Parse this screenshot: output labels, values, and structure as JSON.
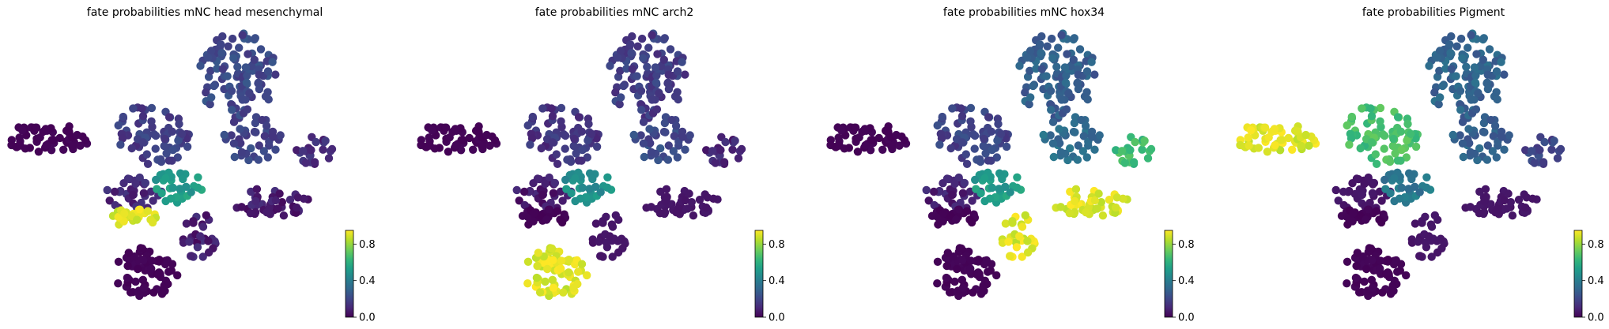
{
  "colormap": [
    "#440154",
    "#482878",
    "#3e4989",
    "#31688e",
    "#26828e",
    "#1f9e89",
    "#35b779",
    "#6ece58",
    "#b5de2b",
    "#fde725"
  ],
  "chart_data": [
    {
      "type": "scatter",
      "title": "fate probabilities mNC head mesenchymal",
      "colorbar": {
        "ticks": [
          0.0,
          0.4,
          0.8
        ],
        "labels": [
          "0.0",
          "0.4",
          "0.8"
        ],
        "range": [
          0,
          0.95
        ]
      },
      "values": {
        "head": 0.0,
        "top": 0.22,
        "right": 0.12,
        "center": 0.18,
        "centerRight": 0.2,
        "lowLeft": 0.12,
        "lowRight": 0.08,
        "transition": 0.55,
        "hotspot": 0.95,
        "bottomBlob": 0.0
      }
    },
    {
      "type": "scatter",
      "title": "fate probabilities mNC arch2",
      "colorbar": {
        "ticks": [
          0.0,
          0.4,
          0.8
        ],
        "labels": [
          "0.0",
          "0.4",
          "0.8"
        ],
        "range": [
          0,
          0.95
        ]
      },
      "values": {
        "head": 0.0,
        "top": 0.18,
        "right": 0.1,
        "center": 0.15,
        "centerRight": 0.22,
        "lowLeft": 0.08,
        "lowRight": 0.05,
        "transition": 0.5,
        "hotspot": 0.0,
        "bottomBlob": 0.95
      }
    },
    {
      "type": "scatter",
      "title": "fate probabilities mNC hox34",
      "colorbar": {
        "ticks": [
          0.0,
          0.4,
          0.8
        ],
        "labels": [
          "0.0",
          "0.4",
          "0.8"
        ],
        "range": [
          0,
          0.95
        ]
      },
      "values": {
        "head": 0.0,
        "top": 0.3,
        "right": 0.68,
        "center": 0.2,
        "centerRight": 0.35,
        "lowLeft": 0.1,
        "lowRight": 0.95,
        "transition": 0.55,
        "hotspot": 0.0,
        "bottomBlob": 0.0
      }
    },
    {
      "type": "scatter",
      "title": "fate probabilities Pigment",
      "colorbar": {
        "ticks": [
          0.0,
          0.4,
          0.8
        ],
        "labels": [
          "0.0",
          "0.4",
          "0.8"
        ],
        "range": [
          0,
          0.95
        ]
      },
      "values": {
        "head": 0.95,
        "top": 0.32,
        "right": 0.2,
        "center": 0.7,
        "centerRight": 0.3,
        "lowLeft": 0.05,
        "lowRight": 0.05,
        "transition": 0.4,
        "hotspot": 0.0,
        "bottomBlob": 0.0
      }
    }
  ]
}
